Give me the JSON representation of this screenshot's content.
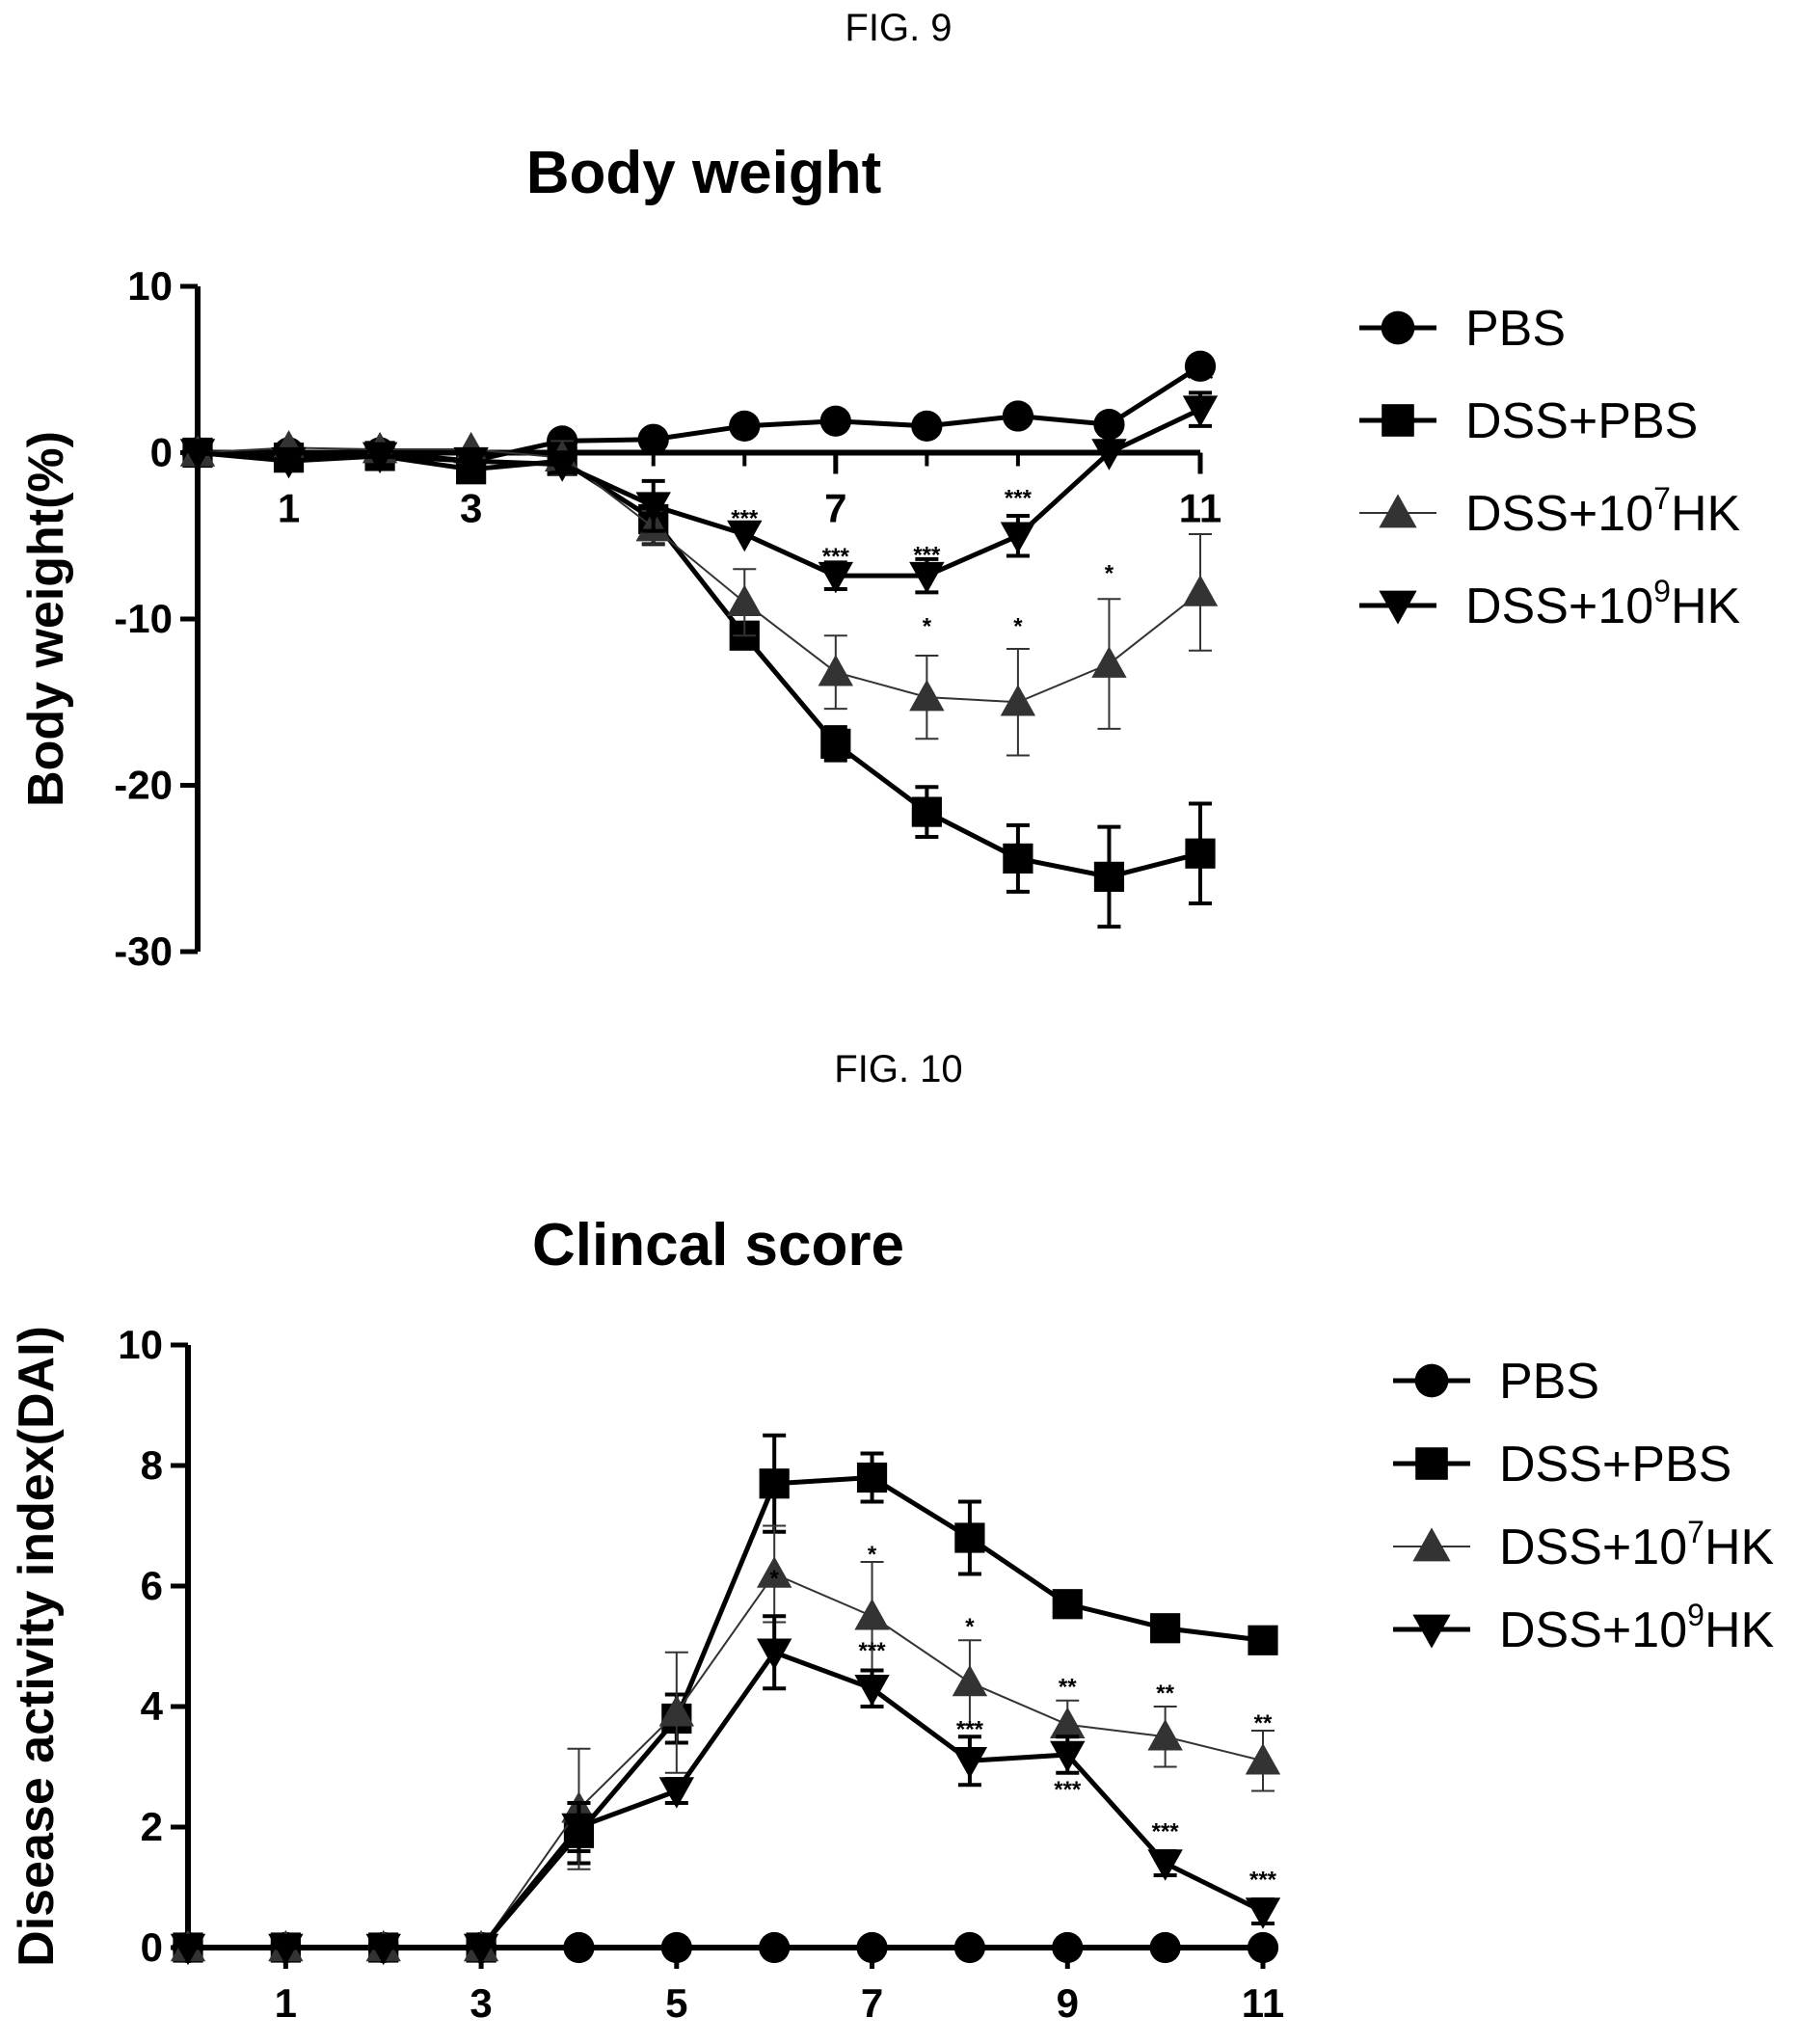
{
  "chart_data": [
    {
      "type": "line",
      "figure_label": "FIG. 9",
      "title": "Body weight",
      "xlabel": "",
      "ylabel": "Body weight(%)",
      "x_ticks": [
        "1",
        "3",
        "7",
        "11"
      ],
      "y_ticks": [
        "10",
        "0",
        "-10",
        "-20",
        "-30"
      ],
      "xlim": [
        0,
        11
      ],
      "ylim": [
        -30,
        10
      ],
      "legend": "right",
      "x": [
        0,
        1,
        2,
        3,
        4,
        5,
        6,
        7,
        8,
        9,
        10,
        11
      ],
      "series": [
        {
          "name": "PBS",
          "marker": "circle",
          "color": "#000000",
          "values": [
            0,
            0,
            0,
            -0.5,
            0.7,
            0.8,
            1.6,
            1.9,
            1.6,
            2.2,
            1.7,
            5.2
          ],
          "errors": [
            0,
            0,
            0,
            0,
            0,
            0,
            0,
            0,
            0,
            0,
            0,
            0
          ]
        },
        {
          "name": "DSS+PBS",
          "marker": "square",
          "color": "#000000",
          "values": [
            0,
            -0.3,
            -0.2,
            -1.0,
            -0.5,
            -4.0,
            -11.0,
            -17.5,
            -21.6,
            -24.4,
            -25.5,
            -24.1
          ],
          "errors": [
            0,
            0,
            0,
            0,
            0,
            1.5,
            0,
            1.0,
            1.5,
            2.0,
            3.0,
            3.0
          ]
        },
        {
          "name": "DSS+10^7HK",
          "marker": "triangle-up",
          "color": "#333333",
          "values": [
            0,
            0.3,
            0.2,
            0.2,
            -0.3,
            -4.5,
            -9.0,
            -13.2,
            -14.7,
            -15.0,
            -12.7,
            -8.4
          ],
          "errors": [
            0,
            0,
            0,
            0,
            1.0,
            1.0,
            2.0,
            2.2,
            2.5,
            3.2,
            3.9,
            3.5
          ]
        },
        {
          "name": "DSS+10^9HK",
          "marker": "triangle-down",
          "color": "#000000",
          "values": [
            0,
            -0.5,
            -0.2,
            -0.5,
            -0.7,
            -3.2,
            -4.9,
            -7.4,
            -7.4,
            -5.0,
            0,
            2.6
          ],
          "errors": [
            0,
            0,
            0,
            0,
            0.5,
            1.5,
            0,
            0.8,
            1.0,
            1.2,
            0,
            1.0
          ]
        }
      ],
      "annotations": [
        {
          "x": 6,
          "y": -4.4,
          "text": "***"
        },
        {
          "x": 7,
          "y": -6.7,
          "text": "***"
        },
        {
          "x": 8,
          "y": -6.6,
          "text": "***"
        },
        {
          "x": 9,
          "y": -3.2,
          "text": "***"
        },
        {
          "x": 10,
          "y": 1.2,
          "text": "***"
        },
        {
          "x": 11,
          "y": 4.0,
          "text": "***"
        },
        {
          "x": 8,
          "y": -10.9,
          "text": "*"
        },
        {
          "x": 9,
          "y": -10.9,
          "text": "*"
        },
        {
          "x": 10,
          "y": -7.7,
          "text": "*"
        }
      ]
    },
    {
      "type": "line",
      "figure_label": "FIG. 10",
      "title": "Clincal score",
      "xlabel": "",
      "ylabel": "Disease activity index(DAI)",
      "x_ticks": [
        "1",
        "3",
        "5",
        "7",
        "9",
        "11"
      ],
      "y_ticks": [
        "10",
        "8",
        "6",
        "4",
        "2",
        "0"
      ],
      "xlim": [
        0,
        11
      ],
      "ylim": [
        0,
        10
      ],
      "legend": "right",
      "x": [
        0,
        1,
        2,
        3,
        4,
        5,
        6,
        7,
        8,
        9,
        10,
        11
      ],
      "series": [
        {
          "name": "PBS",
          "marker": "circle",
          "color": "#000000",
          "values": [
            0,
            0,
            0,
            0,
            0,
            0,
            0,
            0,
            0,
            0,
            0,
            0
          ],
          "errors": [
            0,
            0,
            0,
            0,
            0,
            0,
            0,
            0,
            0,
            0,
            0,
            0
          ]
        },
        {
          "name": "DSS+PBS",
          "marker": "square",
          "color": "#000000",
          "values": [
            0,
            0,
            0,
            0,
            1.9,
            3.8,
            7.7,
            7.8,
            6.8,
            5.7,
            5.3,
            5.1
          ],
          "errors": [
            0,
            0,
            0,
            0,
            0.5,
            0.4,
            0.8,
            0.4,
            0.6,
            0.1,
            0.1,
            0.1
          ]
        },
        {
          "name": "DSS+10^7HK",
          "marker": "triangle-up",
          "color": "#333333",
          "values": [
            0,
            0,
            0,
            0,
            2.3,
            3.9,
            6.2,
            5.5,
            4.4,
            3.7,
            3.5,
            3.1
          ],
          "errors": [
            0,
            0,
            0,
            0,
            1.0,
            1.0,
            0.8,
            0.9,
            0.7,
            0.4,
            0.5,
            0.5
          ]
        },
        {
          "name": "DSS+10^9HK",
          "marker": "triangle-down",
          "color": "#000000",
          "values": [
            0,
            0,
            0,
            0,
            2.0,
            2.6,
            4.9,
            4.3,
            3.1,
            3.2,
            1.4,
            0.6
          ],
          "errors": [
            0,
            0,
            0,
            0,
            0.4,
            0.2,
            0.6,
            0.3,
            0.4,
            0.3,
            0.2,
            0.2
          ]
        }
      ],
      "annotations": [
        {
          "x": 6,
          "y": 6.0,
          "text": "*"
        },
        {
          "x": 7,
          "y": 6.4,
          "text": "*"
        },
        {
          "x": 8,
          "y": 5.2,
          "text": "*"
        },
        {
          "x": 9,
          "y": 4.2,
          "text": "**"
        },
        {
          "x": 10,
          "y": 4.1,
          "text": "**"
        },
        {
          "x": 11,
          "y": 3.6,
          "text": "**"
        },
        {
          "x": 7,
          "y": 4.8,
          "text": "***"
        },
        {
          "x": 8,
          "y": 3.5,
          "text": "***"
        },
        {
          "x": 9,
          "y": 2.5,
          "text": "***"
        },
        {
          "x": 10,
          "y": 1.8,
          "text": "***"
        },
        {
          "x": 11,
          "y": 1.0,
          "text": "***"
        }
      ]
    }
  ]
}
